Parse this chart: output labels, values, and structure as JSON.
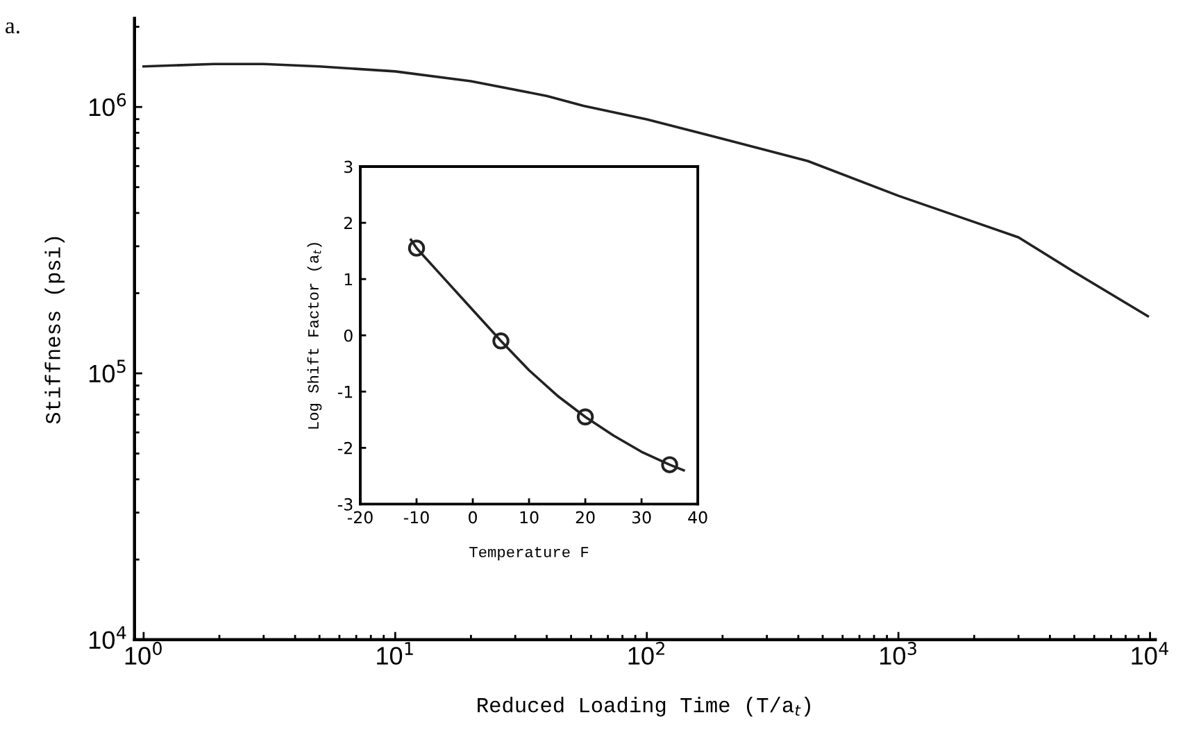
{
  "chart_data": [
    {
      "type": "line",
      "xlabel": "Reduced Loading Time (T/a$_{t}$)",
      "ylabel": "Stiffness (psi)",
      "log": "xy",
      "annotations": [
        "a."
      ],
      "x": [
        1,
        1.9,
        3,
        5,
        10,
        20,
        40,
        56,
        100,
        200,
        436,
        1000,
        2000,
        3000,
        5000,
        9800
      ],
      "series": [
        {
          "color": "#222222",
          "values": [
            1420000,
            1450000,
            1450000,
            1420000,
            1360000,
            1250000,
            1100000,
            1010000,
            898000,
            760000,
            627000,
            464000,
            370000,
            324000,
            240000,
            164000
          ]
        }
      ],
      "xlim": [
        0.92,
        10500
      ],
      "ylim": [
        10000,
        2150000
      ],
      "xticks": [
        {
          "value": 1,
          "label": "10$^{0}$"
        },
        {
          "value": 10,
          "label": "10$^{1}$"
        },
        {
          "value": 100,
          "label": "10$^{2}$"
        },
        {
          "value": 1000,
          "label": "10$^{3}$"
        },
        {
          "value": 10000,
          "label": "10$^{4}$"
        }
      ],
      "yticks": [
        {
          "value": 10000,
          "label": "10$^{4}$"
        },
        {
          "value": 100000,
          "label": "10$^{5}$"
        },
        {
          "value": 1000000,
          "label": "10$^{6}$"
        }
      ],
      "grid": false
    },
    {
      "type": "line",
      "xlabel": "Temperature F",
      "ylabel": "Log Shift Factor (a$_{t}$)",
      "series": [
        {
          "color": "#222222",
          "x": [
            -11,
            -10,
            -5,
            0,
            5,
            10,
            15,
            20,
            25,
            30,
            35,
            37.5
          ],
          "values": [
            1.7,
            1.55,
            1.0,
            0.45,
            -0.1,
            -0.62,
            -1.07,
            -1.45,
            -1.78,
            -2.07,
            -2.3,
            -2.4
          ]
        },
        {
          "type": "scatter",
          "marker": "circle",
          "color": "#222222",
          "x": [
            -10,
            5,
            20,
            35
          ],
          "values": [
            1.55,
            -0.1,
            -1.45,
            -2.3
          ]
        }
      ],
      "xlim": [
        -20,
        40
      ],
      "ylim": [
        -3,
        3
      ],
      "xticks": [
        -20,
        -10,
        0,
        10,
        20,
        30,
        40
      ],
      "yticks": [
        -3,
        -2,
        -1,
        0,
        1,
        2,
        3
      ],
      "grid": false
    }
  ]
}
